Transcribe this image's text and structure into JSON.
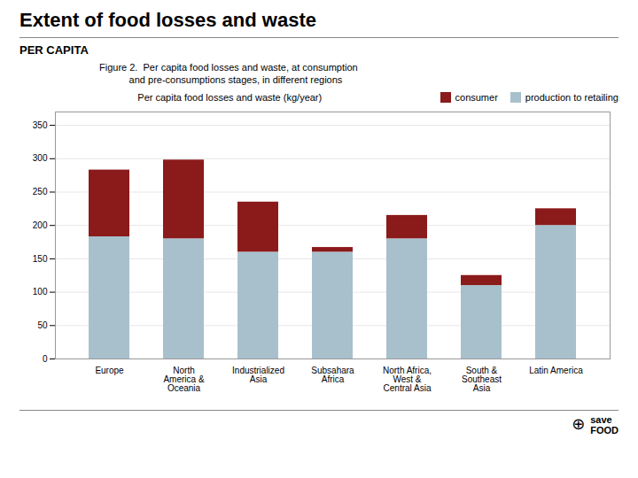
{
  "chart_data": {
    "type": "bar",
    "stacked": true,
    "title": "Extent of food losses and waste",
    "subtitle": "PER CAPITA",
    "caption": "Figure 2.  Per capita food losses and waste, at consumption\n           and pre-consumptions stages, in different regions",
    "ylabel": "Per capita food losses and waste (kg/year)",
    "categories": [
      "Europe",
      "North\nAmerica &\nOceania",
      "Industrialized\nAsia",
      "Subsahara\nAfrica",
      "North Africa,\nWest &\nCentral Asia",
      "South &\nSoutheast\nAsia",
      "Latin America"
    ],
    "series": [
      {
        "name": "production to retailing",
        "color": "#a8c0cc",
        "values": [
          183,
          180,
          160,
          160,
          180,
          110,
          200
        ]
      },
      {
        "name": "consumer",
        "color": "#8b1a1a",
        "values": [
          100,
          118,
          75,
          7,
          35,
          15,
          25
        ]
      }
    ],
    "ylim": [
      0,
      370
    ],
    "yticks": [
      0,
      50,
      100,
      150,
      200,
      250,
      300,
      350
    ],
    "grid": true,
    "legend": "upper right",
    "annotations": [
      "⊕",
      "save\nFOOD"
    ]
  }
}
